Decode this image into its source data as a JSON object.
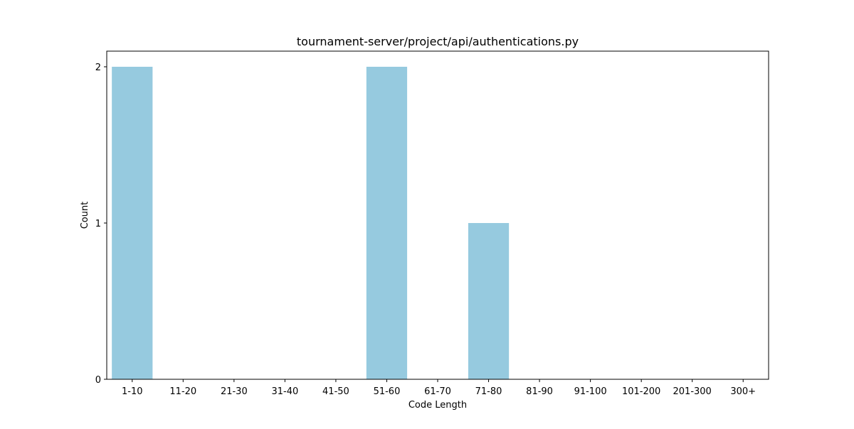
{
  "chart_data": {
    "type": "bar",
    "title": "tournament-server/project/api/authentications.py",
    "xlabel": "Code Length",
    "ylabel": "Count",
    "categories": [
      "1-10",
      "11-20",
      "21-30",
      "31-40",
      "41-50",
      "51-60",
      "61-70",
      "71-80",
      "81-90",
      "91-100",
      "101-200",
      "201-300",
      "300+"
    ],
    "values": [
      2,
      0,
      0,
      0,
      0,
      2,
      0,
      1,
      0,
      0,
      0,
      0,
      0
    ],
    "ylim": [
      0,
      2.1
    ],
    "yticks": [
      0,
      1,
      2
    ],
    "grid": false,
    "bar_color": "#96cadf"
  }
}
